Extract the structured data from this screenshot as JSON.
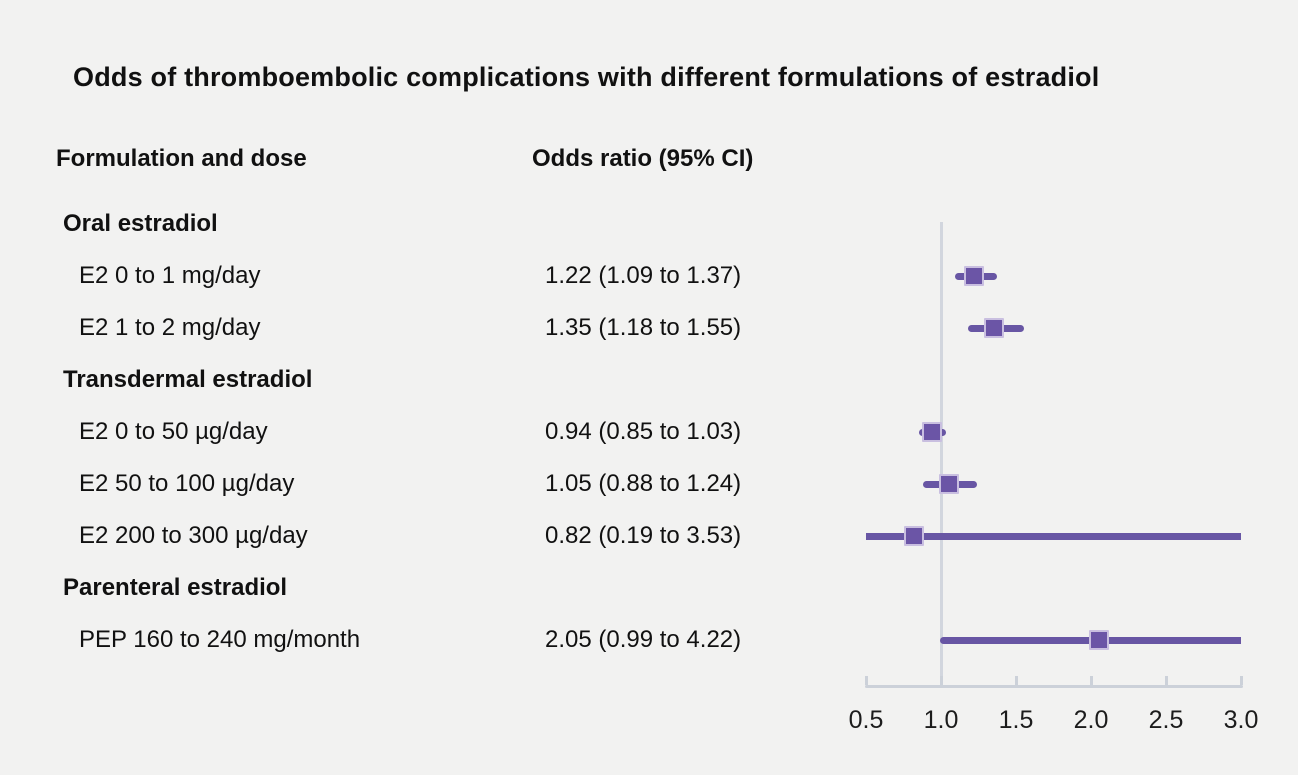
{
  "title": "Odds of thromboembolic complications with different formulations of estradiol",
  "columns": {
    "formulation": "Formulation and dose",
    "odds_ratio": "Odds ratio (95% CI)"
  },
  "rows": [
    {
      "kind": "group",
      "label": "Oral estradiol"
    },
    {
      "kind": "item",
      "label": "E2 0 to 1 mg/day",
      "or_text": "1.22 (1.09 to 1.37)",
      "or": 1.22,
      "lo": 1.09,
      "hi": 1.37
    },
    {
      "kind": "item",
      "label": "E2 1 to 2 mg/day",
      "or_text": "1.35 (1.18 to 1.55)",
      "or": 1.35,
      "lo": 1.18,
      "hi": 1.55
    },
    {
      "kind": "group",
      "label": "Transdermal estradiol"
    },
    {
      "kind": "item",
      "label": "E2 0 to 50 µg/day",
      "or_text": "0.94 (0.85 to 1.03)",
      "or": 0.94,
      "lo": 0.85,
      "hi": 1.03
    },
    {
      "kind": "item",
      "label": "E2 50 to 100 µg/day",
      "or_text": "1.05 (0.88 to 1.24)",
      "or": 1.05,
      "lo": 0.88,
      "hi": 1.24
    },
    {
      "kind": "item",
      "label": "E2 200 to 300 µg/day",
      "or_text": "0.82 (0.19 to 3.53)",
      "or": 0.82,
      "lo": 0.19,
      "hi": 3.53
    },
    {
      "kind": "group",
      "label": "Parenteral estradiol"
    },
    {
      "kind": "item",
      "label": "PEP 160 to 240 mg/month",
      "or_text": "2.05 (0.99 to 4.22)",
      "or": 2.05,
      "lo": 0.99,
      "hi": 4.22
    }
  ],
  "axis": {
    "tick_labels": [
      "0.5",
      "1.0",
      "1.5",
      "2.0",
      "2.5",
      "3.0"
    ],
    "tick_values": [
      0.5,
      1.0,
      1.5,
      2.0,
      2.5,
      3.0
    ],
    "min": 0.5,
    "max": 3.0,
    "reference_value": 1.0
  },
  "colors": {
    "background": "#f2f2f1",
    "ci_line": "#6856a4",
    "marker_fill": "#6b55a6",
    "marker_border": "#c9bfe0",
    "reference_line": "#d2d6de",
    "axis_line": "#ccd1d9",
    "text": "#111111"
  },
  "chart_data": {
    "type": "scatter",
    "subtype": "forest-plot",
    "title": "Odds of thromboembolic complications with different formulations of estradiol",
    "xlabel": "",
    "ylabel": "",
    "xlim": [
      0.5,
      3.0
    ],
    "x_ticks": [
      0.5,
      1.0,
      1.5,
      2.0,
      2.5,
      3.0
    ],
    "reference_line_x": 1.0,
    "grid": false,
    "legend": false,
    "groups": [
      {
        "name": "Oral estradiol",
        "points": [
          {
            "category": "E2 0 to 1 mg/day",
            "odds_ratio": 1.22,
            "ci_low": 1.09,
            "ci_high": 1.37,
            "label": "1.22 (1.09 to 1.37)"
          },
          {
            "category": "E2 1 to 2 mg/day",
            "odds_ratio": 1.35,
            "ci_low": 1.18,
            "ci_high": 1.55,
            "label": "1.35 (1.18 to 1.55)"
          }
        ]
      },
      {
        "name": "Transdermal estradiol",
        "points": [
          {
            "category": "E2 0 to 50 µg/day",
            "odds_ratio": 0.94,
            "ci_low": 0.85,
            "ci_high": 1.03,
            "label": "0.94 (0.85 to 1.03)"
          },
          {
            "category": "E2 50 to 100 µg/day",
            "odds_ratio": 1.05,
            "ci_low": 0.88,
            "ci_high": 1.24,
            "label": "1.05 (0.88 to 1.24)"
          },
          {
            "category": "E2 200 to 300 µg/day",
            "odds_ratio": 0.82,
            "ci_low": 0.19,
            "ci_high": 3.53,
            "label": "0.82 (0.19 to 3.53)"
          }
        ]
      },
      {
        "name": "Parenteral estradiol",
        "points": [
          {
            "category": "PEP 160 to 240 mg/month",
            "odds_ratio": 2.05,
            "ci_low": 0.99,
            "ci_high": 4.22,
            "label": "2.05 (0.99 to 4.22)"
          }
        ]
      }
    ]
  }
}
